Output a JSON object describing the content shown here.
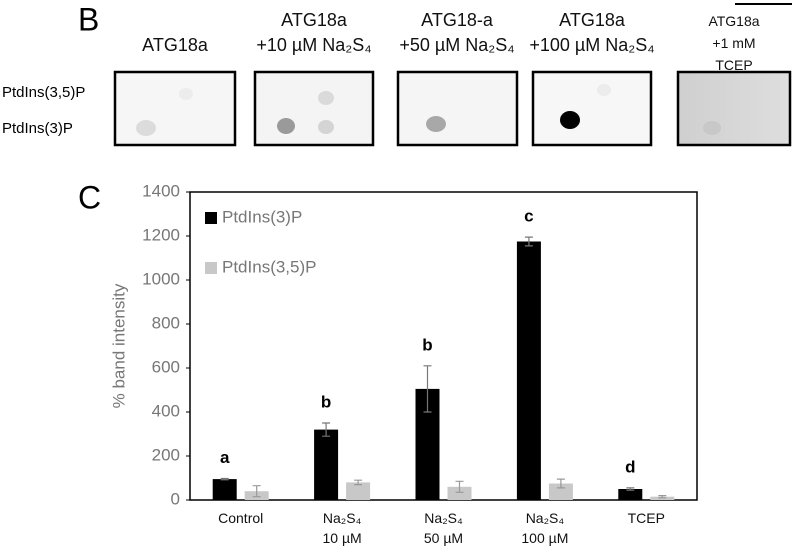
{
  "blot": {
    "panel_label": "B",
    "columns": [
      "ATG18a",
      "ATG18a\n+10 µM Na₂S₄",
      "ATG18-a\n+50 µM Na₂S₄",
      "ATG18a\n+100 µM Na₂S₄",
      "ATG18a\n+1 mM TCEP"
    ],
    "row_labels": [
      "PtdIns(3,5)P",
      "PtdIns(3)P"
    ]
  },
  "chart_data": {
    "type": "bar",
    "panel_label": "C",
    "ylabel": "% band intensity",
    "categories": [
      "Control",
      "Na₂S₄\n10 µM",
      "Na₂S₄\n50 µM",
      "Na₂S₄\n100 µM",
      "TCEP"
    ],
    "series": [
      {
        "name": "PtdIns(3)P",
        "color": "#000000",
        "values": [
          95,
          320,
          505,
          1175,
          50
        ],
        "errors": [
          3,
          30,
          105,
          20,
          5
        ]
      },
      {
        "name": "PtdIns(3,5)P",
        "color": "#c8c8c8",
        "values": [
          40,
          80,
          60,
          75,
          15
        ],
        "errors": [
          25,
          10,
          25,
          20,
          5
        ]
      }
    ],
    "annotations": [
      "a",
      "b",
      "b",
      "c",
      "d"
    ],
    "ylim": [
      0,
      1400
    ],
    "yticks": [
      0,
      200,
      400,
      600,
      800,
      1000,
      1200,
      1400
    ],
    "grid": false,
    "legend": "upper left"
  }
}
